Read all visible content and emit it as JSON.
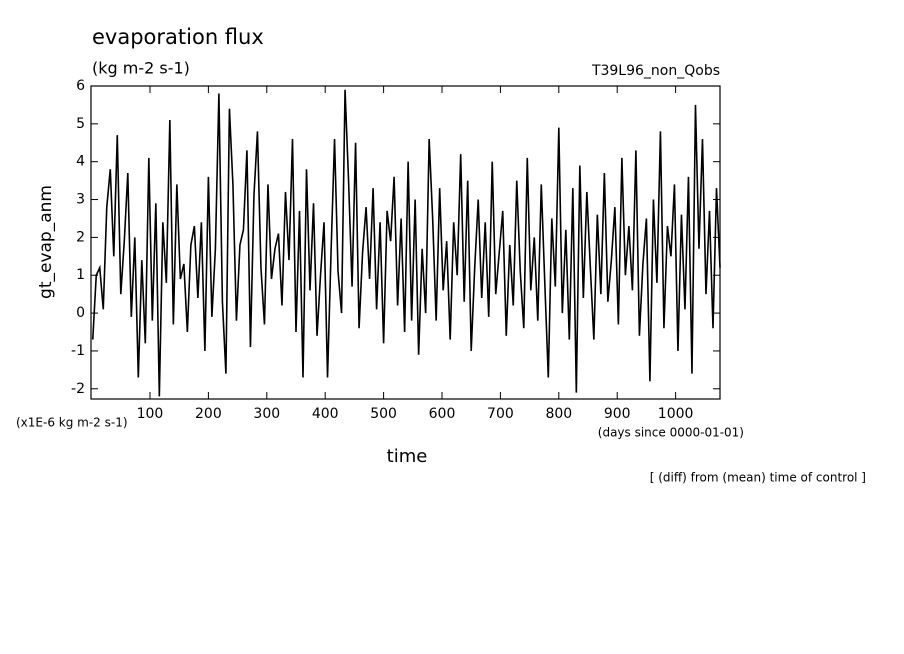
{
  "chart_data": {
    "type": "line",
    "title": "evaporation flux",
    "units": "(kg m-2 s-1)",
    "run_label": "T39L96_non_Qobs",
    "ylabel": "gt_evap_anm",
    "y_unit_label": "(x1E-6 kg m-2 s-1)",
    "xlabel": "time",
    "x_unit_label": "(days since 0000-01-01)",
    "note": "[ (diff) from (mean) time of control ]",
    "color": "#000000",
    "xlim": [
      -1,
      1076
    ],
    "ylim": [
      -2.27,
      6
    ],
    "xticks": [
      100,
      200,
      300,
      400,
      500,
      600,
      700,
      800,
      900,
      1000
    ],
    "yticks": [
      -2,
      -1,
      0,
      1,
      2,
      3,
      4,
      5,
      6
    ],
    "x": [
      2,
      8,
      14,
      20,
      26,
      32,
      38,
      44,
      50,
      56,
      62,
      68,
      74,
      80,
      86,
      92,
      98,
      104,
      110,
      116,
      122,
      128,
      134,
      140,
      146,
      152,
      158,
      164,
      170,
      176,
      182,
      188,
      194,
      200,
      206,
      212,
      218,
      224,
      230,
      236,
      242,
      248,
      254,
      260,
      266,
      272,
      278,
      284,
      290,
      296,
      302,
      308,
      314,
      320,
      326,
      332,
      338,
      344,
      350,
      356,
      362,
      368,
      374,
      380,
      386,
      392,
      398,
      404,
      410,
      416,
      422,
      428,
      434,
      440,
      446,
      452,
      458,
      464,
      470,
      476,
      482,
      488,
      494,
      500,
      506,
      512,
      518,
      524,
      530,
      536,
      542,
      548,
      554,
      560,
      566,
      572,
      578,
      584,
      590,
      596,
      602,
      608,
      614,
      620,
      626,
      632,
      638,
      644,
      650,
      656,
      662,
      668,
      674,
      680,
      686,
      692,
      698,
      704,
      710,
      716,
      722,
      728,
      734,
      740,
      746,
      752,
      758,
      764,
      770,
      776,
      782,
      788,
      794,
      800,
      806,
      812,
      818,
      824,
      830,
      836,
      842,
      848,
      854,
      860,
      866,
      872,
      878,
      884,
      890,
      896,
      902,
      908,
      914,
      920,
      926,
      932,
      938,
      944,
      950,
      956,
      962,
      968,
      974,
      980,
      986,
      992,
      998,
      1004,
      1010,
      1016,
      1022,
      1028,
      1034,
      1040,
      1046,
      1052,
      1058,
      1064,
      1070,
      1076
    ],
    "values": [
      -0.7,
      1.0,
      1.2,
      0.1,
      2.8,
      3.8,
      1.5,
      4.7,
      0.5,
      1.9,
      3.7,
      -0.1,
      2.0,
      -1.7,
      1.4,
      -0.8,
      4.1,
      -0.2,
      2.9,
      -2.2,
      2.4,
      0.8,
      5.1,
      -0.3,
      3.4,
      0.9,
      1.3,
      -0.5,
      1.8,
      2.3,
      0.4,
      2.4,
      -1.0,
      3.6,
      -0.1,
      1.7,
      5.8,
      0.3,
      -1.6,
      5.4,
      3.4,
      -0.2,
      1.8,
      2.2,
      4.3,
      -0.9,
      3.1,
      4.8,
      1.2,
      -0.3,
      3.4,
      0.9,
      1.7,
      2.1,
      0.2,
      3.2,
      1.4,
      4.6,
      -0.5,
      2.7,
      -1.7,
      3.8,
      0.6,
      2.9,
      -0.6,
      1.0,
      2.4,
      -1.7,
      1.6,
      4.6,
      1.1,
      0.0,
      5.9,
      3.5,
      0.7,
      4.5,
      -0.4,
      1.6,
      2.8,
      0.9,
      3.3,
      0.1,
      2.4,
      -0.8,
      2.7,
      1.9,
      3.6,
      0.2,
      2.5,
      -0.5,
      4.0,
      -0.2,
      3.0,
      -1.1,
      1.7,
      0.0,
      4.6,
      2.5,
      -0.2,
      3.3,
      0.6,
      1.9,
      -0.7,
      2.4,
      1.0,
      4.2,
      0.3,
      3.5,
      -1.0,
      1.2,
      3.0,
      0.4,
      2.4,
      -0.1,
      4.0,
      0.5,
      1.6,
      2.7,
      -0.6,
      1.8,
      0.2,
      3.5,
      1.1,
      -0.4,
      4.1,
      0.6,
      2.0,
      -0.2,
      3.4,
      0.8,
      -1.7,
      2.5,
      0.7,
      4.9,
      0.0,
      2.2,
      -0.7,
      3.3,
      -2.1,
      3.9,
      0.4,
      3.2,
      1.2,
      -0.7,
      2.6,
      0.5,
      3.7,
      0.3,
      1.4,
      2.8,
      -0.3,
      4.1,
      1.0,
      2.3,
      0.6,
      4.3,
      -0.6,
      1.3,
      2.5,
      -1.8,
      3.0,
      0.8,
      4.8,
      -0.4,
      2.3,
      1.5,
      3.4,
      -1.0,
      2.6,
      0.1,
      3.6,
      -1.6,
      5.5,
      1.7,
      4.6,
      0.5,
      2.7,
      -0.4,
      3.3,
      1.2
    ]
  }
}
